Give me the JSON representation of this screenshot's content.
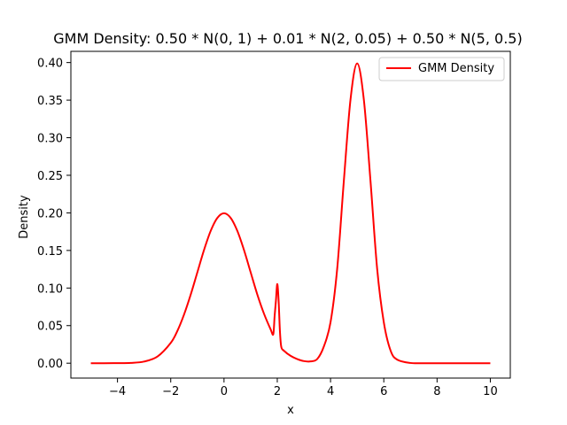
{
  "chart_data": {
    "type": "line",
    "title": "GMM Density: 0.50 * N(0, 1) + 0.01 * N(2, 0.05) + 0.50 * N(5, 0.5)",
    "xlabel": "x",
    "ylabel": "Density",
    "xlim": [
      -5.75,
      10.75
    ],
    "ylim": [
      -0.0198,
      0.4149
    ],
    "xticks": [
      -4,
      -2,
      0,
      2,
      4,
      6,
      8,
      10
    ],
    "xtick_labels": [
      "−4",
      "−2",
      "0",
      "2",
      "4",
      "6",
      "8",
      "10"
    ],
    "yticks": [
      0.0,
      0.05,
      0.1,
      0.15,
      0.2,
      0.25,
      0.3,
      0.35,
      0.4
    ],
    "ytick_labels": [
      "0.00",
      "0.05",
      "0.10",
      "0.15",
      "0.20",
      "0.25",
      "0.30",
      "0.35",
      "0.40"
    ],
    "grid": false,
    "legend_position": "top-right",
    "series": [
      {
        "name": "GMM Density",
        "color": "#ff0000",
        "x": [
          -5.0,
          -4.5,
          -4.0,
          -3.5,
          -3.0,
          -2.5,
          -2.0,
          -1.75,
          -1.5,
          -1.25,
          -1.0,
          -0.75,
          -0.5,
          -0.25,
          0.0,
          0.25,
          0.5,
          0.75,
          1.0,
          1.25,
          1.5,
          1.75,
          1.85,
          1.9,
          1.95,
          2.0,
          2.05,
          2.1,
          2.15,
          2.25,
          2.5,
          2.75,
          3.0,
          3.25,
          3.5,
          3.75,
          4.0,
          4.25,
          4.5,
          4.75,
          5.0,
          5.25,
          5.5,
          5.75,
          6.0,
          6.25,
          6.5,
          7.0,
          7.5,
          8.0,
          9.0,
          10.0
        ],
        "y": [
          0.0,
          0.0,
          0.0001,
          0.0004,
          0.0022,
          0.0088,
          0.027,
          0.043,
          0.0648,
          0.0913,
          0.121,
          0.1506,
          0.176,
          0.1933,
          0.1995,
          0.1933,
          0.176,
          0.1506,
          0.121,
          0.0915,
          0.066,
          0.0451,
          0.0386,
          0.0624,
          0.0834,
          0.1053,
          0.0834,
          0.0423,
          0.0218,
          0.0166,
          0.0098,
          0.0055,
          0.0028,
          0.0024,
          0.0055,
          0.0223,
          0.0545,
          0.1257,
          0.2426,
          0.3509,
          0.3989,
          0.3509,
          0.2426,
          0.1257,
          0.0545,
          0.0172,
          0.0048,
          0.0003,
          0.0,
          0.0,
          0.0,
          0.0
        ]
      }
    ]
  }
}
